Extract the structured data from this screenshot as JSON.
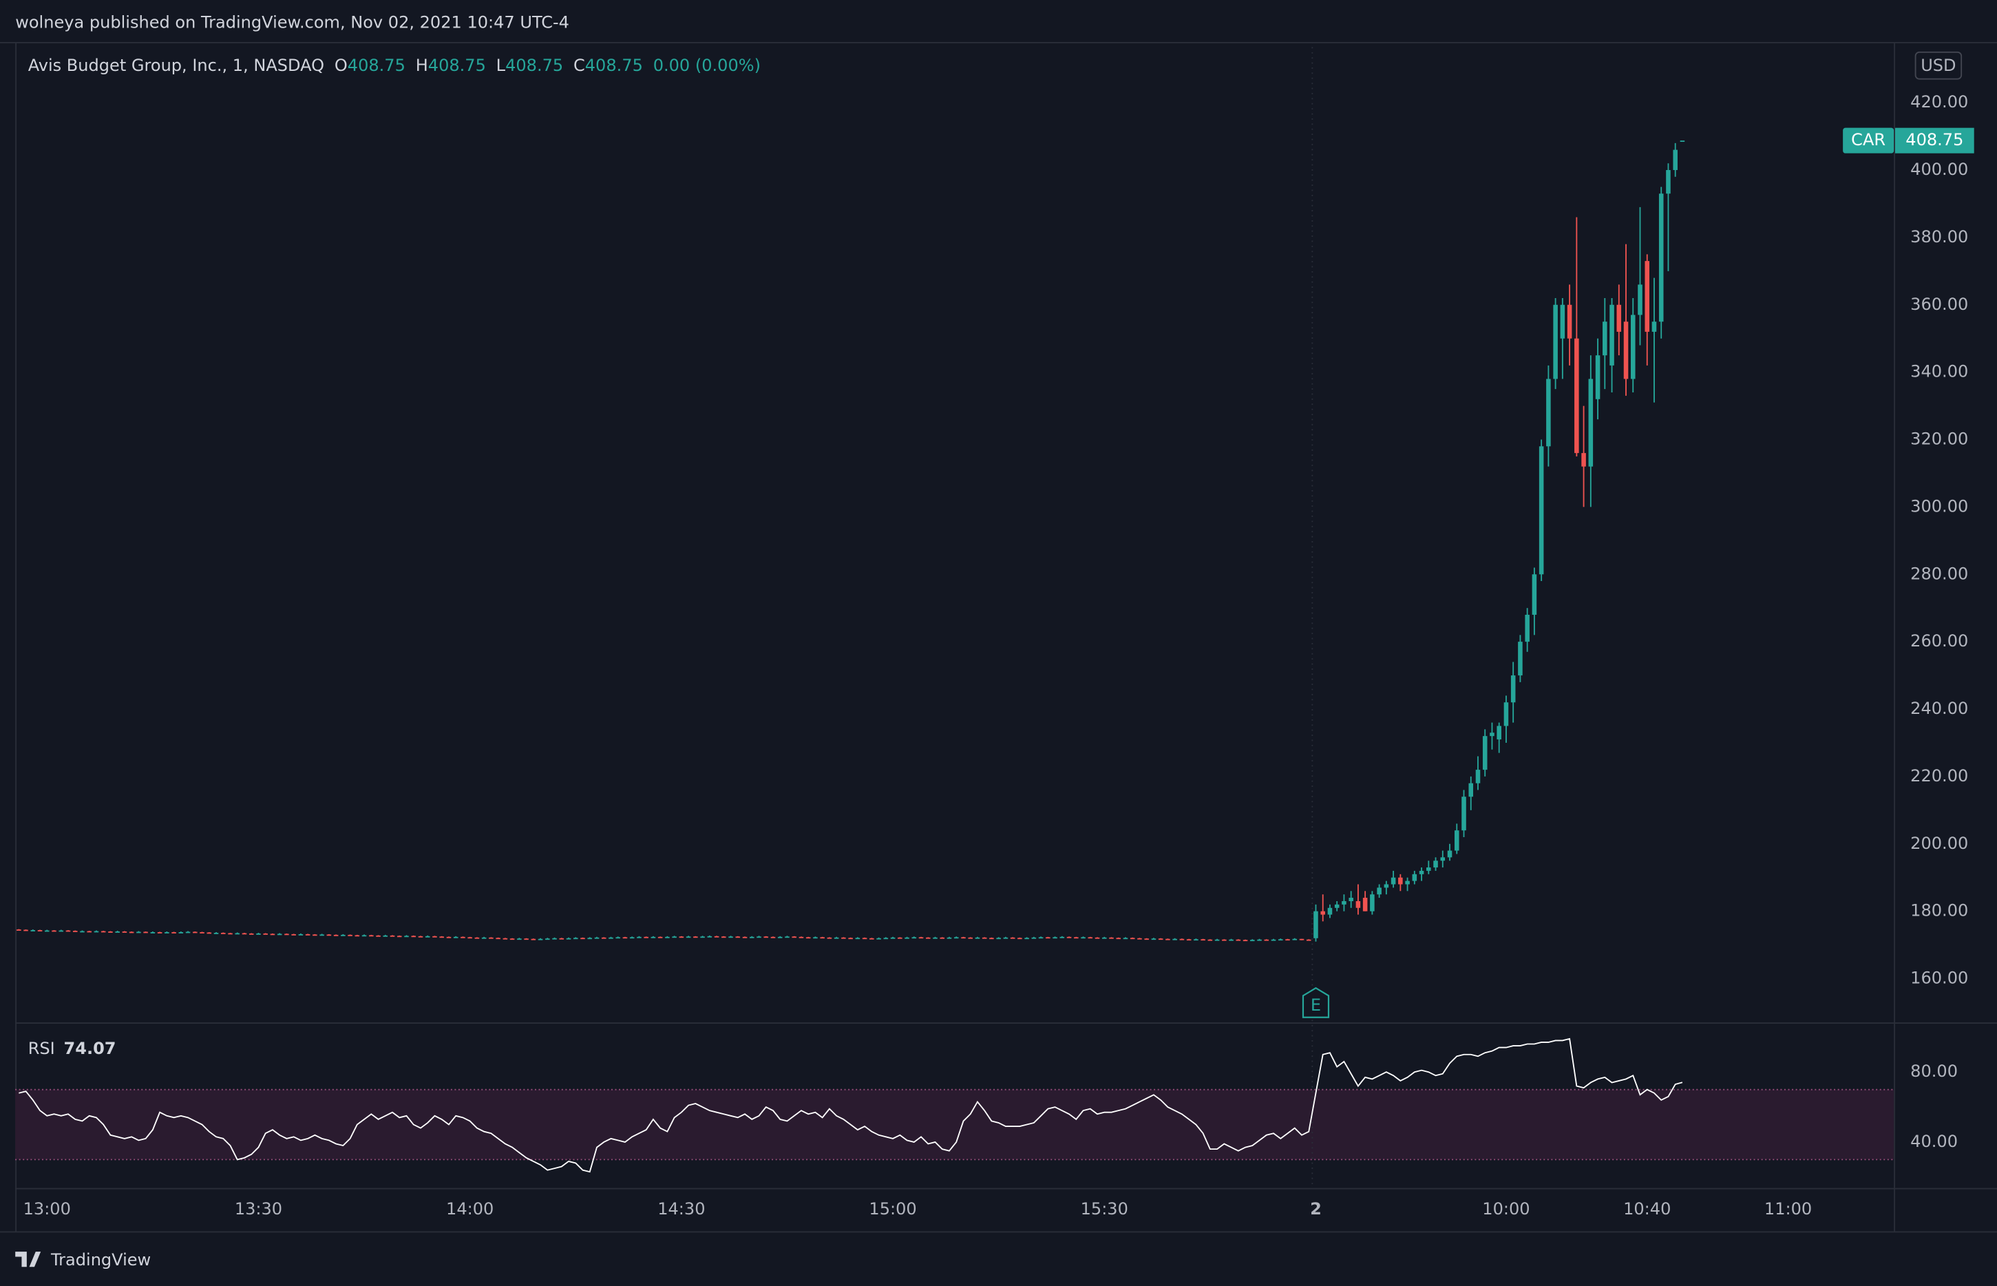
{
  "header": {
    "published": "wolneya published on TradingView.com, Nov 02, 2021 10:47 UTC-4"
  },
  "footer": "TradingView",
  "chart_data": {
    "type": "candlestick",
    "title": "Avis Budget Group, Inc., 1, NASDAQ",
    "symbol": "CAR",
    "currency": "USD",
    "legend": [
      {
        "key": "O"
      },
      {
        "key": "H"
      },
      {
        "key": "L"
      },
      {
        "key": "C"
      }
    ],
    "change": "0.00 (0.00%)",
    "up_color": "#26a69a",
    "down_color": "#ef5350",
    "grid": false,
    "xlim": [
      -0.5,
      266
    ],
    "xticks": [
      {
        "value": 4,
        "label": "13:00"
      },
      {
        "value": 34,
        "label": "13:30"
      },
      {
        "value": 64,
        "label": "14:00"
      },
      {
        "value": 94,
        "label": "14:30"
      },
      {
        "value": 124,
        "label": "15:00"
      },
      {
        "value": 154,
        "label": "15:30"
      },
      {
        "value": 184,
        "label": "2"
      },
      {
        "value": 211,
        "label": "10:00"
      },
      {
        "value": 231,
        "label": "10:40"
      },
      {
        "value": 251,
        "label": "11:00"
      }
    ],
    "ylim": [
      147,
      438
    ],
    "yticks": [
      {
        "value": 160,
        "label": "160.00"
      },
      {
        "value": 180,
        "label": "180.00"
      },
      {
        "value": 200,
        "label": "200.00"
      },
      {
        "value": 220,
        "label": "220.00"
      },
      {
        "value": 240,
        "label": "240.00"
      },
      {
        "value": 260,
        "label": "260.00"
      },
      {
        "value": 280,
        "label": "280.00"
      },
      {
        "value": 300,
        "label": "300.00"
      },
      {
        "value": 320,
        "label": "320.00"
      },
      {
        "value": 340,
        "label": "340.00"
      },
      {
        "value": 360,
        "label": "360.00"
      },
      {
        "value": 380,
        "label": "380.00"
      },
      {
        "value": 400,
        "label": "400.00"
      },
      {
        "value": 420,
        "label": "420.00"
      }
    ],
    "earnings": {
      "label": "E",
      "x": 184
    },
    "open": [
      174.6,
      174.5,
      174.4,
      174.4,
      174.3,
      174.3,
      174.2,
      174.3,
      174.2,
      174.1,
      174.1,
      174.0,
      174.1,
      174.0,
      173.9,
      174.0,
      173.9,
      173.8,
      173.9,
      173.8,
      173.8,
      173.7,
      173.8,
      173.7,
      173.8,
      173.9,
      173.8,
      173.7,
      173.6,
      173.6,
      173.5,
      173.4,
      173.5,
      173.4,
      173.3,
      173.4,
      173.3,
      173.2,
      173.3,
      173.2,
      173.1,
      173.2,
      173.1,
      173.0,
      173.1,
      173.0,
      172.9,
      173.0,
      172.9,
      172.8,
      172.9,
      172.8,
      172.7,
      172.8,
      172.7,
      172.6,
      172.7,
      172.6,
      172.5,
      172.6,
      172.5,
      172.4,
      172.3,
      172.4,
      172.3,
      172.2,
      172.1,
      172.2,
      172.1,
      172.0,
      171.9,
      171.8,
      171.9,
      171.8,
      171.7,
      171.8,
      171.9,
      172.0,
      171.9,
      172.0,
      172.1,
      172.0,
      172.1,
      172.2,
      172.1,
      172.2,
      172.3,
      172.2,
      172.3,
      172.4,
      172.3,
      172.4,
      172.3,
      172.4,
      172.5,
      172.4,
      172.5,
      172.4,
      172.5,
      172.6,
      172.5,
      172.4,
      172.5,
      172.4,
      172.3,
      172.4,
      172.5,
      172.4,
      172.3,
      172.4,
      172.5,
      172.4,
      172.3,
      172.2,
      172.3,
      172.2,
      172.1,
      172.2,
      172.1,
      172.0,
      172.1,
      172.0,
      171.9,
      172.0,
      172.1,
      172.2,
      172.1,
      172.2,
      172.3,
      172.2,
      172.1,
      172.2,
      172.1,
      172.2,
      172.3,
      172.2,
      172.1,
      172.2,
      172.1,
      172.0,
      172.1,
      172.2,
      172.1,
      172.0,
      172.1,
      172.2,
      172.3,
      172.2,
      172.3,
      172.4,
      172.3,
      172.2,
      172.3,
      172.2,
      172.1,
      172.2,
      172.1,
      172.0,
      172.1,
      172.0,
      171.9,
      171.8,
      171.9,
      171.8,
      171.7,
      171.8,
      171.7,
      171.6,
      171.7,
      171.6,
      171.5,
      171.6,
      171.5,
      171.6,
      171.5,
      171.4,
      171.5,
      171.6,
      171.5,
      171.6,
      171.7,
      171.6,
      171.8,
      171.6,
      172,
      180,
      179,
      181,
      182,
      183,
      183,
      184,
      180,
      185,
      187,
      188,
      190,
      188,
      189,
      191,
      192,
      193,
      195,
      196,
      198,
      204,
      214,
      218,
      222,
      232,
      231,
      235,
      242,
      250,
      260,
      268,
      280,
      318,
      338,
      350,
      360,
      350,
      316,
      312,
      332,
      345,
      342,
      360,
      355,
      338,
      357,
      373,
      352,
      355,
      393,
      400,
      408.75
    ],
    "high": [
      174.7,
      174.6,
      174.6,
      174.5,
      174.5,
      174.4,
      174.5,
      174.4,
      174.3,
      174.3,
      174.2,
      174.3,
      174.2,
      174.1,
      174.2,
      174.1,
      174.0,
      174.1,
      174.0,
      174.0,
      173.9,
      174.0,
      173.9,
      174.0,
      174.1,
      174.0,
      173.9,
      173.8,
      173.8,
      173.7,
      173.6,
      173.7,
      173.6,
      173.5,
      173.6,
      173.5,
      173.4,
      173.5,
      173.4,
      173.3,
      173.4,
      173.3,
      173.2,
      173.3,
      173.2,
      173.1,
      173.2,
      173.1,
      173.0,
      173.1,
      173.0,
      172.9,
      173.0,
      172.9,
      172.8,
      172.9,
      172.8,
      172.7,
      172.8,
      172.7,
      172.6,
      172.5,
      172.6,
      172.5,
      172.4,
      172.3,
      172.4,
      172.3,
      172.2,
      172.1,
      172.0,
      172.1,
      172.0,
      171.9,
      172.0,
      172.1,
      172.2,
      172.1,
      172.2,
      172.3,
      172.2,
      172.3,
      172.4,
      172.3,
      172.4,
      172.5,
      172.4,
      172.5,
      172.6,
      172.5,
      172.6,
      172.5,
      172.6,
      172.7,
      172.6,
      172.7,
      172.6,
      172.7,
      172.8,
      172.7,
      172.6,
      172.7,
      172.6,
      172.5,
      172.6,
      172.7,
      172.6,
      172.5,
      172.6,
      172.7,
      172.6,
      172.5,
      172.4,
      172.5,
      172.4,
      172.3,
      172.4,
      172.3,
      172.2,
      172.3,
      172.2,
      172.1,
      172.2,
      172.3,
      172.4,
      172.3,
      172.4,
      172.5,
      172.4,
      172.3,
      172.4,
      172.3,
      172.4,
      172.5,
      172.4,
      172.3,
      172.4,
      172.3,
      172.2,
      172.3,
      172.4,
      172.3,
      172.2,
      172.3,
      172.4,
      172.5,
      172.4,
      172.5,
      172.6,
      172.5,
      172.4,
      172.5,
      172.4,
      172.3,
      172.4,
      172.3,
      172.2,
      172.3,
      172.2,
      172.1,
      172.0,
      172.1,
      172.0,
      171.9,
      172.0,
      171.9,
      171.8,
      171.9,
      171.8,
      171.7,
      171.8,
      171.7,
      171.8,
      171.7,
      171.6,
      171.7,
      171.8,
      171.7,
      171.8,
      171.9,
      171.8,
      172.0,
      171.8,
      171.7,
      182,
      185,
      182,
      183,
      185,
      186,
      188,
      186,
      186,
      188,
      189,
      192,
      191,
      190,
      192,
      193,
      195,
      196,
      198,
      200,
      206,
      216,
      220,
      226,
      234,
      236,
      236,
      244,
      254,
      262,
      270,
      282,
      320,
      342,
      362,
      362,
      366,
      386,
      330,
      345,
      350,
      362,
      362,
      366,
      378,
      362,
      389,
      375,
      368,
      395,
      402,
      408,
      408.75
    ],
    "low": [
      174.3,
      174.2,
      174.2,
      174.1,
      174.1,
      174.0,
      174.1,
      174.0,
      173.9,
      173.9,
      173.8,
      173.9,
      173.8,
      173.7,
      173.8,
      173.7,
      173.6,
      173.7,
      173.6,
      173.6,
      173.5,
      173.6,
      173.5,
      173.6,
      173.7,
      173.6,
      173.5,
      173.4,
      173.4,
      173.3,
      173.2,
      173.3,
      173.2,
      173.1,
      173.2,
      173.1,
      173.0,
      173.1,
      173.0,
      172.9,
      173.0,
      172.9,
      172.8,
      172.9,
      172.8,
      172.7,
      172.8,
      172.7,
      172.6,
      172.7,
      172.6,
      172.5,
      172.6,
      172.5,
      172.4,
      172.5,
      172.4,
      172.3,
      172.4,
      172.3,
      172.2,
      172.1,
      172.2,
      172.1,
      172.0,
      171.9,
      172.0,
      171.9,
      171.8,
      171.7,
      171.6,
      171.7,
      171.6,
      171.5,
      171.6,
      171.7,
      171.8,
      171.7,
      171.8,
      171.9,
      171.8,
      171.9,
      172.0,
      171.9,
      172.0,
      172.1,
      172.0,
      172.1,
      172.2,
      172.1,
      172.2,
      172.1,
      172.2,
      172.3,
      172.2,
      172.3,
      172.2,
      172.3,
      172.4,
      172.3,
      172.2,
      172.3,
      172.2,
      172.1,
      172.2,
      172.3,
      172.2,
      172.1,
      172.2,
      172.3,
      172.2,
      172.1,
      172.0,
      172.1,
      172.0,
      171.9,
      172.0,
      171.9,
      171.8,
      171.9,
      171.8,
      171.7,
      171.8,
      171.9,
      172.0,
      171.9,
      172.0,
      172.1,
      172.0,
      171.9,
      172.0,
      171.9,
      172.0,
      172.1,
      172.0,
      171.9,
      172.0,
      171.9,
      171.8,
      171.9,
      172.0,
      171.9,
      171.8,
      171.9,
      172.0,
      172.1,
      172.0,
      172.1,
      172.2,
      172.1,
      172.0,
      172.1,
      172.0,
      171.9,
      172.0,
      171.9,
      171.8,
      171.9,
      171.8,
      171.7,
      171.6,
      171.7,
      171.6,
      171.5,
      171.6,
      171.5,
      171.4,
      171.5,
      171.4,
      171.3,
      171.4,
      171.3,
      171.4,
      171.3,
      171.2,
      171.3,
      171.4,
      171.3,
      171.4,
      171.5,
      171.4,
      171.6,
      171.4,
      171.3,
      171,
      177,
      178,
      180,
      180,
      181,
      179,
      180,
      179,
      184,
      185,
      187,
      186,
      186,
      188,
      189,
      191,
      192,
      193,
      195,
      197,
      202,
      210,
      216,
      220,
      228,
      227,
      230,
      236,
      248,
      257,
      262,
      278,
      312,
      335,
      338,
      342,
      315,
      300,
      300,
      326,
      335,
      334,
      345,
      333,
      334,
      348,
      342,
      331,
      350,
      370,
      398,
      408.75
    ],
    "close": [
      174.5,
      174.4,
      174.4,
      174.3,
      174.3,
      174.2,
      174.3,
      174.2,
      174.1,
      174.1,
      174.0,
      174.1,
      174.0,
      173.9,
      174.0,
      173.9,
      173.8,
      173.9,
      173.8,
      173.8,
      173.7,
      173.8,
      173.7,
      173.8,
      173.9,
      173.8,
      173.7,
      173.6,
      173.6,
      173.5,
      173.4,
      173.5,
      173.4,
      173.3,
      173.4,
      173.3,
      173.2,
      173.3,
      173.2,
      173.1,
      173.2,
      173.1,
      173.0,
      173.1,
      173.0,
      172.9,
      173.0,
      172.9,
      172.8,
      172.9,
      172.8,
      172.7,
      172.8,
      172.7,
      172.6,
      172.7,
      172.6,
      172.5,
      172.6,
      172.5,
      172.4,
      172.3,
      172.4,
      172.3,
      172.2,
      172.1,
      172.2,
      172.1,
      172.0,
      171.9,
      171.8,
      171.9,
      171.8,
      171.7,
      171.8,
      171.9,
      172.0,
      171.9,
      172.0,
      172.1,
      172.0,
      172.1,
      172.2,
      172.1,
      172.2,
      172.3,
      172.2,
      172.3,
      172.4,
      172.3,
      172.4,
      172.3,
      172.4,
      172.5,
      172.4,
      172.5,
      172.4,
      172.5,
      172.6,
      172.5,
      172.4,
      172.5,
      172.4,
      172.3,
      172.4,
      172.5,
      172.4,
      172.3,
      172.4,
      172.5,
      172.4,
      172.3,
      172.2,
      172.3,
      172.2,
      172.1,
      172.2,
      172.1,
      172.0,
      172.1,
      172.0,
      171.9,
      172.0,
      172.1,
      172.2,
      172.1,
      172.2,
      172.3,
      172.2,
      172.1,
      172.2,
      172.1,
      172.2,
      172.3,
      172.2,
      172.1,
      172.2,
      172.1,
      172.0,
      172.1,
      172.2,
      172.1,
      172.0,
      172.1,
      172.2,
      172.3,
      172.2,
      172.3,
      172.4,
      172.3,
      172.2,
      172.3,
      172.2,
      172.1,
      172.2,
      172.1,
      172.0,
      172.1,
      172.0,
      171.9,
      171.8,
      171.9,
      171.8,
      171.7,
      171.8,
      171.7,
      171.6,
      171.7,
      171.6,
      171.5,
      171.6,
      171.5,
      171.6,
      171.5,
      171.4,
      171.5,
      171.6,
      171.5,
      171.6,
      171.7,
      171.6,
      171.8,
      171.6,
      171.5,
      180,
      179,
      181,
      182,
      183,
      184,
      181,
      180,
      185,
      187,
      188,
      190,
      188,
      189,
      191,
      192,
      193,
      195,
      196,
      198,
      204,
      214,
      218,
      222,
      232,
      233,
      235,
      242,
      250,
      260,
      268,
      280,
      318,
      338,
      360,
      360,
      350,
      316,
      312,
      338,
      345,
      355,
      360,
      352,
      338,
      357,
      366,
      352,
      355,
      393,
      400,
      406,
      408.75
    ],
    "rsi": {
      "name": "RSI",
      "color": "#ffffff",
      "band": [
        30,
        70
      ],
      "ylim": [
        13.8,
        107.6
      ],
      "yticks": [
        {
          "value": 80,
          "label": "80.00"
        },
        {
          "value": 40,
          "label": "40.00"
        }
      ],
      "values": [
        68,
        69,
        64,
        58,
        55,
        56,
        55,
        56,
        53,
        52,
        55,
        54,
        50,
        44,
        43,
        42,
        43,
        41,
        42,
        47,
        57,
        55,
        54,
        55,
        54,
        52,
        50,
        46,
        43,
        42,
        38,
        30,
        31,
        33,
        37,
        45,
        47,
        44,
        42,
        43,
        41,
        42,
        44,
        42,
        41,
        39,
        38,
        42,
        50,
        53,
        56,
        53,
        55,
        57,
        54,
        55,
        50,
        48,
        51,
        55,
        53,
        50,
        55,
        54,
        52,
        48,
        46,
        45,
        42,
        39,
        37,
        34,
        31,
        29,
        27,
        24,
        25,
        26,
        29,
        28,
        24,
        23,
        37,
        40,
        42,
        41,
        40,
        43,
        45,
        47,
        53,
        48,
        46,
        54,
        57,
        61,
        62,
        60,
        58,
        57,
        56,
        55,
        54,
        56,
        53,
        55,
        60,
        58,
        53,
        52,
        55,
        58,
        56,
        57,
        54,
        59,
        55,
        53,
        50,
        47,
        49,
        46,
        44,
        43,
        42,
        44,
        41,
        40,
        43,
        39,
        40,
        36,
        35,
        40,
        52,
        56,
        63,
        58,
        52,
        51,
        49,
        49,
        49,
        50,
        51,
        55,
        59,
        60,
        58,
        56,
        53,
        58,
        59,
        56,
        57,
        57,
        58,
        59,
        61,
        63,
        65,
        67,
        64,
        60,
        58,
        56,
        53,
        50,
        45,
        36,
        36,
        39,
        37,
        35,
        37,
        38,
        41,
        44,
        45,
        42,
        45,
        48,
        44,
        46,
        68,
        90,
        91,
        83,
        86,
        79,
        72,
        77,
        76,
        78,
        80,
        78,
        75,
        77,
        80,
        81,
        80,
        78,
        79,
        85,
        89,
        90,
        90,
        89,
        91,
        92,
        94,
        94,
        95,
        95,
        96,
        96,
        97,
        97,
        98,
        98,
        99,
        72,
        71,
        74,
        76,
        77,
        74,
        75,
        76,
        78,
        67,
        70,
        68,
        64,
        66,
        73,
        74.07
      ]
    }
  }
}
